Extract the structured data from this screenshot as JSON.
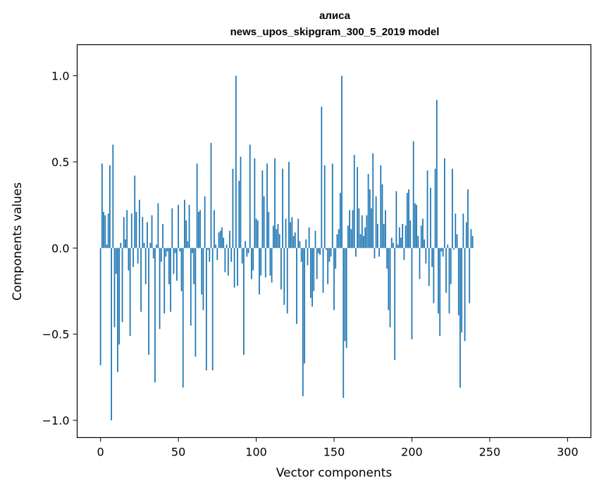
{
  "chart_data": {
    "type": "bar",
    "title": "алиса",
    "subtitle": "news_upos_skipgram_300_5_2019 model",
    "xlabel": "Vector components",
    "ylabel": "Components values",
    "xlim": [
      -15,
      315
    ],
    "ylim": [
      -1.1,
      1.18
    ],
    "xticks": [
      0,
      50,
      100,
      150,
      200,
      250,
      300
    ],
    "yticks": [
      -1.0,
      -0.5,
      0.0,
      0.5,
      1.0
    ],
    "ytick_labels": [
      "−1.0",
      "−0.5",
      "0.0",
      "0.5",
      "1.0"
    ],
    "grid": false,
    "bar_color": "#1f77b4",
    "values": [
      -0.68,
      0.49,
      0.21,
      0.19,
      0.02,
      0.2,
      0.48,
      -1.0,
      0.6,
      -0.46,
      -0.15,
      -0.72,
      -0.56,
      0.03,
      -0.43,
      0.18,
      0.05,
      0.22,
      -0.13,
      -0.51,
      0.2,
      -0.11,
      0.42,
      0.21,
      -0.09,
      0.28,
      -0.37,
      0.18,
      0.03,
      -0.21,
      0.15,
      -0.62,
      0.03,
      0.19,
      -0.06,
      -0.78,
      0.02,
      0.26,
      -0.47,
      -0.08,
      0.14,
      -0.38,
      -0.05,
      -0.02,
      -0.21,
      -0.37,
      0.23,
      -0.15,
      -0.03,
      -0.19,
      0.25,
      -0.02,
      -0.25,
      -0.81,
      0.28,
      0.16,
      0.04,
      0.25,
      -0.45,
      -0.03,
      -0.21,
      -0.63,
      0.49,
      0.21,
      0.22,
      -0.27,
      -0.36,
      0.3,
      -0.71,
      -0.01,
      -0.08,
      0.61,
      -0.71,
      0.22,
      0.02,
      -0.07,
      0.09,
      0.1,
      0.12,
      0.06,
      -0.14,
      0.02,
      -0.16,
      0.1,
      -0.08,
      0.46,
      -0.23,
      1.0,
      -0.22,
      0.39,
      0.53,
      -0.09,
      -0.62,
      0.04,
      -0.05,
      -0.03,
      0.6,
      -0.18,
      -0.13,
      0.52,
      0.17,
      0.16,
      -0.27,
      -0.16,
      0.45,
      0.3,
      -0.17,
      0.49,
      0.21,
      -0.16,
      -0.2,
      0.13,
      0.52,
      0.11,
      0.14,
      0.08,
      -0.24,
      0.46,
      -0.33,
      0.17,
      -0.38,
      0.5,
      0.15,
      0.18,
      0.07,
      0.09,
      -0.44,
      0.17,
      0.04,
      -0.08,
      -0.86,
      -0.67,
      0.05,
      -0.1,
      0.12,
      -0.29,
      -0.34,
      -0.25,
      0.1,
      -0.18,
      -0.03,
      -0.04,
      0.82,
      -0.26,
      0.48,
      -0.01,
      -0.21,
      -0.08,
      -0.05,
      0.49,
      -0.36,
      -0.12,
      0.08,
      0.11,
      0.32,
      1.0,
      -0.87,
      -0.54,
      -0.58,
      0.13,
      0.22,
      0.11,
      0.22,
      0.54,
      -0.05,
      0.47,
      0.23,
      0.08,
      0.19,
      0.07,
      0.12,
      0.19,
      0.43,
      0.34,
      0.23,
      0.55,
      -0.06,
      0.3,
      0.14,
      -0.05,
      0.48,
      0.37,
      0.14,
      0.22,
      -0.12,
      -0.36,
      -0.46,
      0.06,
      0.03,
      -0.65,
      0.33,
      0.02,
      0.12,
      0.06,
      0.14,
      -0.07,
      0.13,
      0.32,
      0.34,
      0.16,
      -0.53,
      0.62,
      0.26,
      0.25,
      0.07,
      -0.18,
      0.13,
      0.17,
      0.05,
      -0.09,
      0.45,
      -0.22,
      0.35,
      -0.11,
      -0.32,
      0.46,
      0.86,
      -0.38,
      -0.51,
      -0.02,
      -0.05,
      0.52,
      -0.26,
      0.02,
      -0.38,
      -0.21,
      0.46,
      -0.01,
      0.2,
      0.08,
      -0.39,
      -0.81,
      -0.49,
      0.2,
      -0.54,
      0.15,
      0.34,
      -0.32,
      0.11,
      0.07
    ]
  }
}
